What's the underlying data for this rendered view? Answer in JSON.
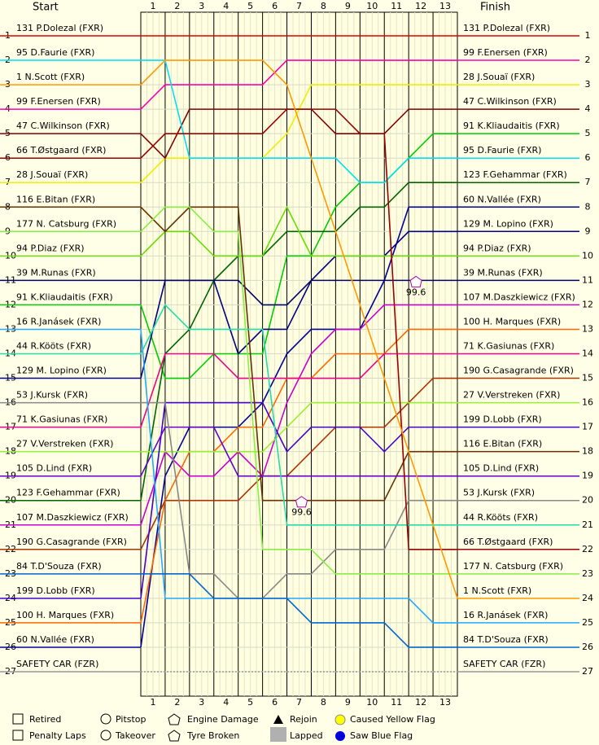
{
  "chart_data": {
    "type": "bump",
    "start_title": "Start",
    "finish_title": "Finish",
    "x": [
      0,
      1,
      2,
      3,
      4,
      5,
      6,
      7,
      8,
      9,
      10,
      11,
      12,
      13
    ],
    "xlim": [
      0,
      13
    ],
    "xticks": [
      {
        "value": 0.5,
        "label": "1"
      },
      {
        "value": 1.5,
        "label": "2"
      },
      {
        "value": 2.5,
        "label": "3"
      },
      {
        "value": 3.5,
        "label": "4"
      },
      {
        "value": 4.5,
        "label": "5"
      },
      {
        "value": 5.5,
        "label": "6"
      },
      {
        "value": 6.5,
        "label": "7"
      },
      {
        "value": 7.5,
        "label": "8"
      },
      {
        "value": 8.5,
        "label": "9"
      },
      {
        "value": 9.5,
        "label": "10"
      },
      {
        "value": 10.5,
        "label": "11"
      },
      {
        "value": 11.5,
        "label": "12"
      },
      {
        "value": 12.5,
        "label": "13"
      }
    ],
    "ylim": [
      1,
      27
    ],
    "yticks": [
      1,
      2,
      3,
      4,
      5,
      6,
      7,
      8,
      9,
      10,
      11,
      12,
      13,
      14,
      15,
      16,
      17,
      18,
      19,
      20,
      21,
      22,
      23,
      24,
      25,
      26,
      27
    ],
    "series": [
      {
        "name": "131 P.Dolezal (FXR)",
        "color": "#dd0000",
        "values": [
          1,
          1,
          1,
          1,
          1,
          1,
          1,
          1,
          1,
          1,
          1,
          1,
          1,
          1
        ]
      },
      {
        "name": "99 F.Enersen (FXR)",
        "color": "#ff00aa",
        "values": [
          4,
          3,
          3,
          3,
          3,
          3,
          2,
          2,
          2,
          2,
          2,
          2,
          2,
          2
        ]
      },
      {
        "name": "28 J.Souaï (FXR)",
        "color": "#eeee00",
        "values": [
          7,
          6,
          6,
          6,
          6,
          6,
          5,
          3,
          3,
          3,
          3,
          3,
          3,
          3
        ]
      },
      {
        "name": "47 C.Wilkinson (FXR)",
        "color": "#800000",
        "values": [
          5,
          6,
          4,
          4,
          4,
          4,
          4,
          4,
          5,
          5,
          5,
          4,
          4,
          4
        ]
      },
      {
        "name": "91 K.Kliaudaitis (FXR)",
        "color": "#00cc00",
        "values": [
          12,
          15,
          15,
          14,
          14,
          14,
          10,
          10,
          8,
          7,
          7,
          6,
          5,
          5
        ]
      },
      {
        "name": "95 D.Faurie (FXR)",
        "color": "#00e0f0",
        "values": [
          2,
          2,
          6,
          6,
          6,
          6,
          6,
          6,
          6,
          7,
          7,
          6,
          6,
          6
        ]
      },
      {
        "name": "123 F.Gehammar (FXR)",
        "color": "#006400",
        "values": [
          20,
          14,
          13,
          11,
          10,
          10,
          9,
          9,
          9,
          8,
          8,
          7,
          7,
          7
        ]
      },
      {
        "name": "60 N.Vallée (FXR)",
        "color": "#000099",
        "values": [
          26,
          19,
          17,
          17,
          17,
          16,
          14,
          13,
          13,
          13,
          11,
          8,
          8,
          8
        ]
      },
      {
        "name": "129 M. Lopino (FXR)",
        "color": "#000080",
        "values": [
          15,
          11,
          11,
          11,
          14,
          13,
          13,
          11,
          10,
          10,
          10,
          9,
          9,
          9
        ]
      },
      {
        "name": "94 P.Diaz (FXR)",
        "color": "#66dd00",
        "values": [
          10,
          9,
          9,
          10,
          10,
          10,
          8,
          10,
          10,
          10,
          10,
          10,
          10,
          10
        ]
      },
      {
        "name": "39 M.Runas (FXR)",
        "color": "#000066",
        "values": [
          11,
          11,
          11,
          11,
          11,
          12,
          12,
          11,
          11,
          11,
          11,
          11,
          11,
          11
        ]
      },
      {
        "name": "107 M.Daszkiewicz (FXR)",
        "color": "#cc00cc",
        "values": [
          21,
          18,
          19,
          19,
          18,
          19,
          16,
          14,
          13,
          13,
          12,
          12,
          12,
          12
        ]
      },
      {
        "name": "100 H. Marques (FXR)",
        "color": "#ff6600",
        "values": [
          25,
          20,
          18,
          18,
          17,
          17,
          15,
          15,
          14,
          14,
          14,
          13,
          13,
          13
        ]
      },
      {
        "name": "71 K.Gasiunas (FXR)",
        "color": "#ee0088",
        "values": [
          17,
          14,
          14,
          14,
          15,
          15,
          15,
          15,
          15,
          15,
          14,
          14,
          14,
          14
        ]
      },
      {
        "name": "190 G.Casagrande (FXR)",
        "color": "#aa3300",
        "values": [
          22,
          20,
          20,
          20,
          20,
          19,
          19,
          18,
          17,
          17,
          17,
          16,
          15,
          15
        ]
      },
      {
        "name": "27 V.Verstreken (FXR)",
        "color": "#99ee33",
        "values": [
          18,
          18,
          18,
          18,
          18,
          18,
          17,
          16,
          16,
          16,
          16,
          16,
          16,
          16
        ]
      },
      {
        "name": "199 D.Lobb (FXR)",
        "color": "#4400cc",
        "values": [
          24,
          16,
          16,
          16,
          16,
          16,
          18,
          17,
          17,
          17,
          18,
          17,
          17,
          17
        ]
      },
      {
        "name": "116 E.Bitan (FXR)",
        "color": "#663300",
        "values": [
          8,
          9,
          8,
          8,
          8,
          20,
          20,
          20,
          20,
          20,
          20,
          18,
          18,
          18
        ]
      },
      {
        "name": "105 D.Lind (FXR)",
        "color": "#6600cc",
        "values": [
          19,
          17,
          17,
          17,
          19,
          19,
          19,
          19,
          19,
          19,
          19,
          19,
          19,
          19
        ]
      },
      {
        "name": "53 J.Kursk (FXR)",
        "color": "#888888",
        "values": [
          16,
          16,
          23,
          23,
          24,
          24,
          23,
          23,
          22,
          22,
          22,
          20,
          20,
          20
        ]
      },
      {
        "name": "44 R.Kööts (FXR)",
        "color": "#22ddaa",
        "values": [
          14,
          12,
          13,
          13,
          13,
          13,
          21,
          21,
          21,
          21,
          21,
          21,
          21,
          21
        ]
      },
      {
        "name": "66 T.Østgaard (FXR)",
        "color": "#990000",
        "values": [
          6,
          5,
          5,
          5,
          5,
          5,
          4,
          4,
          4,
          5,
          5,
          22,
          22,
          22
        ]
      },
      {
        "name": "177 N. Catsburg (FXR)",
        "color": "#88ee44",
        "values": [
          9,
          8,
          8,
          9,
          9,
          22,
          22,
          22,
          23,
          23,
          23,
          23,
          23,
          23
        ]
      },
      {
        "name": "1 N.Scott (FXR)",
        "color": "#ff9900",
        "values": [
          3,
          2,
          2,
          2,
          2,
          2,
          3,
          6,
          9,
          12,
          15,
          18,
          21,
          24
        ]
      },
      {
        "name": "16 R.Janásek (FXR)",
        "color": "#22aaff",
        "values": [
          13,
          24,
          24,
          24,
          24,
          24,
          24,
          24,
          24,
          24,
          24,
          24,
          25,
          25
        ]
      },
      {
        "name": "84 T.D'Souza (FXR)",
        "color": "#0066cc",
        "values": [
          23,
          23,
          23,
          24,
          24,
          24,
          24,
          25,
          25,
          25,
          25,
          26,
          26,
          26
        ]
      },
      {
        "name": "SAFETY CAR (FZR)",
        "color": "#999999",
        "values": [
          27,
          27,
          27,
          27,
          27,
          27,
          27,
          27,
          27,
          27,
          27,
          27,
          27,
          27
        ]
      }
    ],
    "annotations": [
      {
        "label": "99.6",
        "x": 6.6,
        "y": 20.3
      },
      {
        "label": "99.6",
        "x": 11.3,
        "y": 11.3
      }
    ],
    "legend": [
      "Retired",
      "Penalty Laps",
      "Pitstop",
      "Takeover",
      "Engine Damage",
      "Tyre Broken",
      "Rejoin",
      "Lapped",
      "Caused Yellow Flag",
      "Saw Blue Flag"
    ]
  }
}
